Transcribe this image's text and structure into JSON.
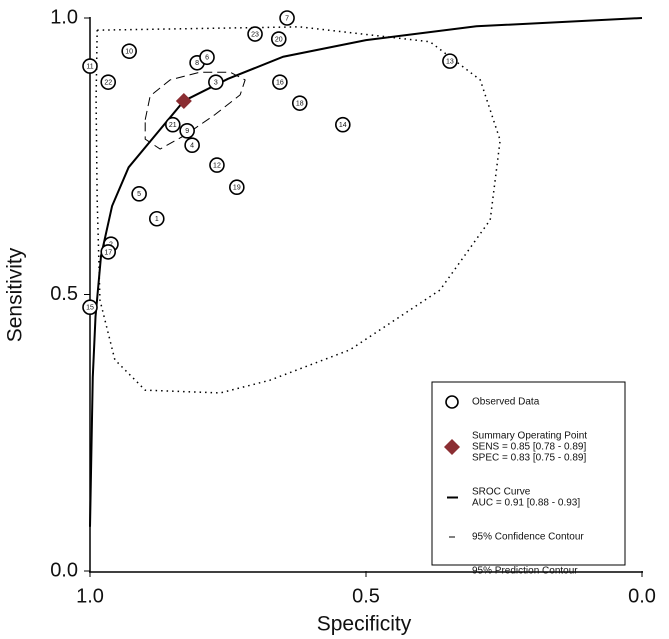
{
  "chart_data": {
    "type": "sroc",
    "x_label": "Specificity",
    "y_label": "Sensitivity",
    "xlim": [
      1.0,
      0.0
    ],
    "ylim": [
      0.0,
      1.0
    ],
    "xticks": [
      {
        "value": 1.0,
        "label": "1.0"
      },
      0.5,
      {
        "value": 0.0,
        "label": "0.0"
      }
    ],
    "yticks": [
      {
        "value": 0.0,
        "label": "0.0"
      },
      0.5,
      {
        "value": 1.0,
        "label": "1.0"
      }
    ],
    "series": [
      {
        "name": "Observed Data",
        "style": "points",
        "color": "#000000",
        "labels": [
          "7",
          "23",
          "20",
          "10",
          "11",
          "22",
          "8",
          "6",
          "3",
          "16",
          "13",
          "18",
          "14",
          "21",
          "9",
          "4",
          "12",
          "19",
          "5",
          "1",
          "2",
          "17",
          "15"
        ],
        "x": [
          0.643,
          0.701,
          0.658,
          0.929,
          1.0,
          0.967,
          0.806,
          0.788,
          0.772,
          0.656,
          0.348,
          0.62,
          0.542,
          0.85,
          0.824,
          0.815,
          0.77,
          0.734,
          0.911,
          0.879,
          0.962,
          0.967,
          1.0
        ],
        "y": [
          1.0,
          0.971,
          0.962,
          0.94,
          0.913,
          0.884,
          0.919,
          0.929,
          0.884,
          0.884,
          0.922,
          0.846,
          0.807,
          0.807,
          0.796,
          0.77,
          0.734,
          0.694,
          0.682,
          0.637,
          0.591,
          0.577,
          0.477
        ]
      },
      {
        "name": "Summary Operating Point",
        "style": "diamond",
        "color": "#8b2e33",
        "details": [
          "SENS = 0.85 [0.78 - 0.89]",
          "SPEC = 0.83 [0.75 - 0.89]"
        ],
        "x": [
          0.83
        ],
        "y": [
          0.85
        ]
      },
      {
        "name": "SROC Curve",
        "style": "line",
        "color": "#000000",
        "details": [
          "AUC = 0.91 [0.88 - 0.93]"
        ],
        "x": [
          1.0,
          0.995,
          0.99,
          0.98,
          0.96,
          0.93,
          0.88,
          0.83,
          0.75,
          0.65,
          0.5,
          0.3,
          0.0
        ],
        "y": [
          0.08,
          0.35,
          0.46,
          0.57,
          0.66,
          0.73,
          0.79,
          0.85,
          0.89,
          0.93,
          0.96,
          0.985,
          1.0
        ]
      },
      {
        "name": "95% Confidence Contour",
        "style": "dashed",
        "color": "#000000",
        "x": [
          0.9,
          0.891,
          0.855,
          0.801,
          0.746,
          0.719,
          0.728,
          0.774,
          0.828,
          0.873,
          0.9,
          0.9
        ],
        "y": [
          0.816,
          0.859,
          0.888,
          0.902,
          0.902,
          0.888,
          0.861,
          0.825,
          0.788,
          0.763,
          0.781,
          0.816
        ]
      },
      {
        "name": "95% Prediction Contour",
        "style": "dotted",
        "color": "#000000",
        "x": [
          0.987,
          0.62,
          0.384,
          0.293,
          0.257,
          0.275,
          0.366,
          0.529,
          0.674,
          0.764,
          0.9,
          0.955,
          0.982,
          0.987,
          0.989,
          0.987
        ],
        "y": [
          0.978,
          0.984,
          0.957,
          0.888,
          0.779,
          0.635,
          0.508,
          0.4,
          0.345,
          0.322,
          0.327,
          0.382,
          0.49,
          0.671,
          0.852,
          0.978
        ]
      }
    ]
  }
}
